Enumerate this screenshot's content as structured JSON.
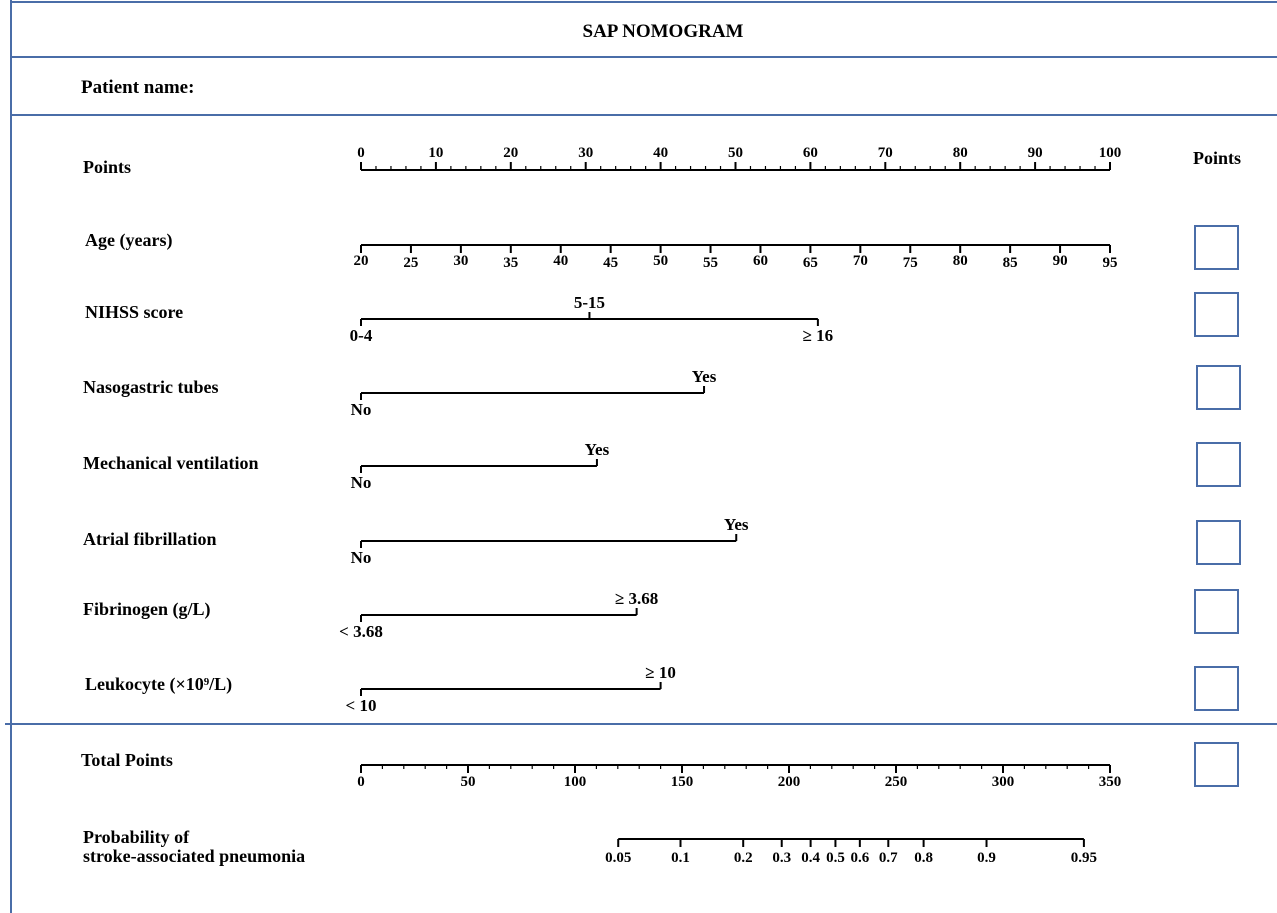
{
  "title": "SAP NOMOGRAM",
  "patient_label": "Patient name:",
  "points_column_header": "Points",
  "points_scale": {
    "label": "Points",
    "min": 0,
    "max": 100,
    "major_step": 10,
    "minor_step": 2,
    "tick_labels": [
      "0",
      "10",
      "20",
      "30",
      "40",
      "50",
      "60",
      "70",
      "80",
      "90",
      "100"
    ]
  },
  "variables": [
    {
      "name": "age",
      "label": "Age (years)",
      "type": "continuous",
      "min": 20,
      "max": 95,
      "step": 5,
      "tick_labels": [
        "20",
        "25",
        "30",
        "35",
        "40",
        "45",
        "50",
        "55",
        "60",
        "65",
        "70",
        "75",
        "80",
        "85",
        "90",
        "95"
      ]
    },
    {
      "name": "nihss",
      "label": "NIHSS score",
      "type": "categorical",
      "categories": [
        {
          "label": "0-4",
          "points": 0,
          "side": "below"
        },
        {
          "label": "5-15",
          "points": 30.5,
          "side": "above"
        },
        {
          "label": "≥ 16",
          "points": 61,
          "side": "below"
        }
      ]
    },
    {
      "name": "nasogastric",
      "label": "Nasogastric tubes",
      "type": "categorical",
      "categories": [
        {
          "label": "No",
          "points": 0,
          "side": "below"
        },
        {
          "label": "Yes",
          "points": 45.8,
          "side": "above"
        }
      ]
    },
    {
      "name": "ventilation",
      "label": "Mechanical ventilation",
      "type": "categorical",
      "categories": [
        {
          "label": "No",
          "points": 0,
          "side": "below"
        },
        {
          "label": "Yes",
          "points": 31.5,
          "side": "above"
        }
      ]
    },
    {
      "name": "af",
      "label": "Atrial fibrillation",
      "type": "categorical",
      "categories": [
        {
          "label": "No",
          "points": 0,
          "side": "below"
        },
        {
          "label": "Yes",
          "points": 50.1,
          "side": "above"
        }
      ]
    },
    {
      "name": "fibrinogen",
      "label": "Fibrinogen (g/L)",
      "type": "categorical",
      "categories": [
        {
          "label": "< 3.68",
          "points": 0,
          "side": "below"
        },
        {
          "label": "≥ 3.68",
          "points": 36.8,
          "side": "above"
        }
      ]
    },
    {
      "name": "leukocyte",
      "label": "Leukocyte (×10⁹/L)",
      "type": "categorical",
      "categories": [
        {
          "label": "< 10",
          "points": 0,
          "side": "below"
        },
        {
          "label": "≥ 10",
          "points": 40,
          "side": "above"
        }
      ]
    }
  ],
  "total_points": {
    "label": "Total Points",
    "min": 0,
    "max": 350,
    "major_step": 50,
    "minor_step": 10,
    "tick_labels": [
      "0",
      "50",
      "100",
      "150",
      "200",
      "250",
      "300",
      "350"
    ]
  },
  "probability": {
    "label_line1": "Probability of",
    "label_line2": "stroke-associated pneumonia",
    "ticks": [
      {
        "label": "0.05",
        "total_points": 120.2
      },
      {
        "label": "0.1",
        "total_points": 149.3
      },
      {
        "label": "0.2",
        "total_points": 178.6
      },
      {
        "label": "0.3",
        "total_points": 196.6
      },
      {
        "label": "0.4",
        "total_points": 210.1
      },
      {
        "label": "0.5",
        "total_points": 221.7
      },
      {
        "label": "0.6",
        "total_points": 233.1
      },
      {
        "label": "0.7",
        "total_points": 246.4
      },
      {
        "label": "0.8",
        "total_points": 262.9
      },
      {
        "label": "0.9",
        "total_points": 292.3
      },
      {
        "label": "0.95",
        "total_points": 337.8
      }
    ]
  }
}
